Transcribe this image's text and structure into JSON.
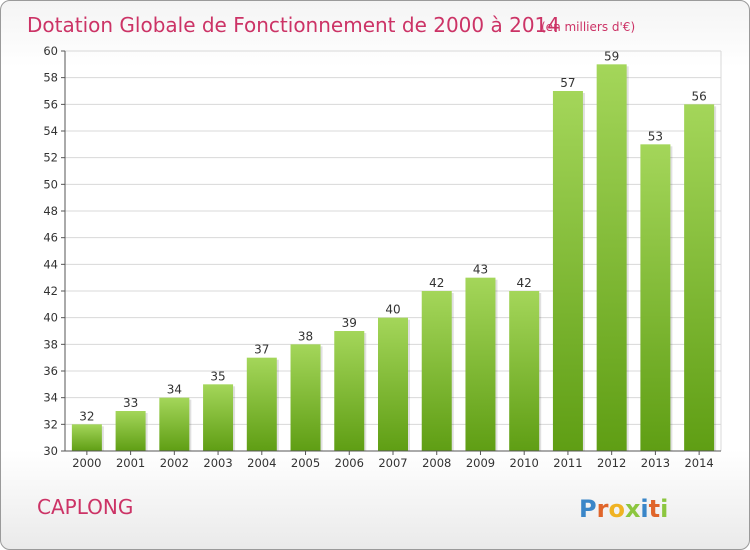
{
  "chart_data": {
    "type": "bar",
    "title": "Dotation Globale de Fonctionnement de 2000 à 2014",
    "subtitle": "(en milliers d'€)",
    "categories": [
      "2000",
      "2001",
      "2002",
      "2003",
      "2004",
      "2005",
      "2006",
      "2007",
      "2008",
      "2009",
      "2010",
      "2011",
      "2012",
      "2013",
      "2014"
    ],
    "values": [
      32,
      33,
      34,
      35,
      37,
      38,
      39,
      40,
      42,
      43,
      42,
      57,
      59,
      53,
      56
    ],
    "ylim": [
      30,
      60
    ],
    "ytick_step": 2,
    "grid": true,
    "bar_color": "#7ab82e",
    "title_color": "#cc3366"
  },
  "location": "CAPLONG",
  "logo": {
    "letters": [
      "P",
      "r",
      "o",
      "x",
      "i",
      "t",
      "i"
    ],
    "colors": [
      "#3a86c8",
      "#e0652a",
      "#f0b323",
      "#8cc63f",
      "#3a86c8",
      "#e0652a",
      "#8cc63f"
    ]
  }
}
